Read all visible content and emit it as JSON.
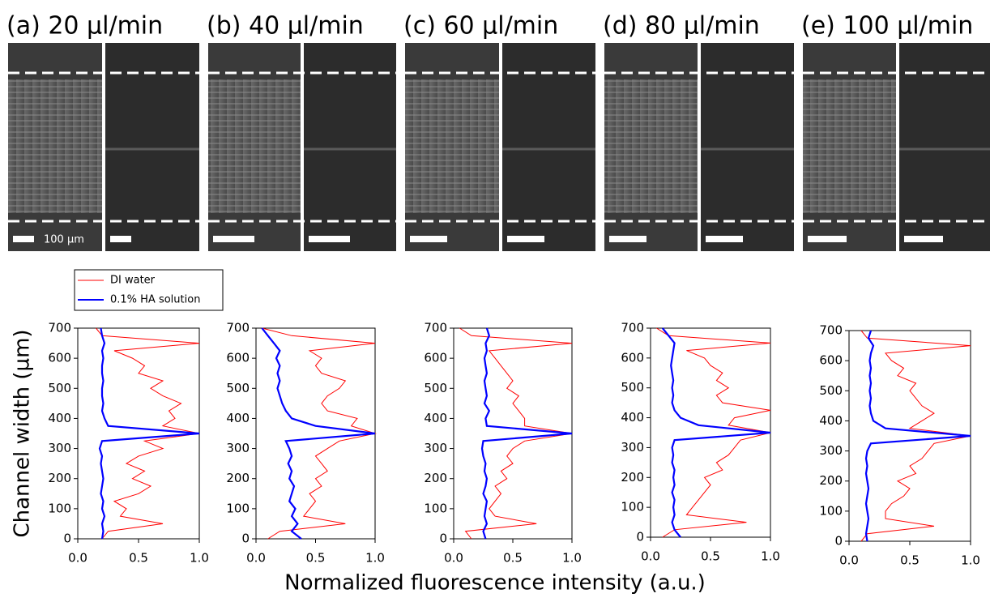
{
  "panels": [
    {
      "label": "(a)  20 µl/min"
    },
    {
      "label": "(b)  40 µl/min"
    },
    {
      "label": "(c)  60 µl/min"
    },
    {
      "label": "(d)  80 µl/min"
    },
    {
      "label": "(e)  100 µl/min"
    }
  ],
  "scale_bar": "100 µm",
  "shared_ylabel": "Channel width (µm)",
  "shared_xlabel": "Normalized fluorescence intensity (a.u.)",
  "chart_data": [
    {
      "type": "line",
      "y": [
        0,
        25,
        50,
        75,
        100,
        125,
        150,
        175,
        200,
        225,
        250,
        275,
        300,
        325,
        350,
        375,
        400,
        425,
        450,
        475,
        500,
        525,
        550,
        575,
        600,
        625,
        650,
        675,
        700
      ],
      "xlim": [
        0,
        1
      ],
      "ylim": [
        0,
        700
      ],
      "xticks": [
        {
          "value": 0,
          "label": "0.0"
        },
        {
          "value": 0.5,
          "label": "0.5"
        },
        {
          "value": 1,
          "label": "1.0"
        }
      ],
      "yticks": [
        0,
        100,
        200,
        300,
        400,
        500,
        600,
        700
      ],
      "series": [
        {
          "name": "DI water",
          "color": "#ff0000",
          "values": [
            0.2,
            0.25,
            0.7,
            0.35,
            0.4,
            0.3,
            0.5,
            0.6,
            0.45,
            0.55,
            0.4,
            0.5,
            0.7,
            0.55,
            1.0,
            0.7,
            0.8,
            0.75,
            0.85,
            0.7,
            0.6,
            0.7,
            0.5,
            0.55,
            0.45,
            0.3,
            1.0,
            0.2,
            0.15
          ]
        },
        {
          "name": "0.1% HA solution",
          "color": "#0000ff",
          "values": [
            0.2,
            0.21,
            0.2,
            0.22,
            0.2,
            0.21,
            0.19,
            0.2,
            0.21,
            0.2,
            0.19,
            0.2,
            0.18,
            0.2,
            1.0,
            0.25,
            0.22,
            0.2,
            0.21,
            0.2,
            0.2,
            0.21,
            0.2,
            0.2,
            0.21,
            0.2,
            0.22,
            0.2,
            0.19
          ]
        }
      ]
    },
    {
      "type": "line",
      "y": [
        0,
        25,
        50,
        75,
        100,
        125,
        150,
        175,
        200,
        225,
        250,
        275,
        300,
        325,
        350,
        375,
        400,
        425,
        450,
        475,
        500,
        525,
        550,
        575,
        600,
        625,
        650,
        675,
        700
      ],
      "xlim": [
        0,
        1
      ],
      "ylim": [
        0,
        700
      ],
      "xticks": [
        {
          "value": 0,
          "label": "0.0"
        },
        {
          "value": 0.5,
          "label": "0.5"
        },
        {
          "value": 1,
          "label": "1.0"
        }
      ],
      "yticks": [
        0,
        100,
        200,
        300,
        400,
        500,
        600,
        700
      ],
      "series": [
        {
          "name": "DI water",
          "color": "#ff0000",
          "values": [
            0.1,
            0.2,
            0.75,
            0.4,
            0.45,
            0.5,
            0.45,
            0.55,
            0.5,
            0.6,
            0.55,
            0.5,
            0.6,
            0.7,
            1.0,
            0.8,
            0.85,
            0.6,
            0.55,
            0.6,
            0.7,
            0.75,
            0.55,
            0.5,
            0.55,
            0.45,
            1.0,
            0.3,
            0.05
          ]
        },
        {
          "name": "0.1% HA solution",
          "color": "#0000ff",
          "values": [
            0.38,
            0.3,
            0.35,
            0.3,
            0.33,
            0.28,
            0.3,
            0.32,
            0.28,
            0.3,
            0.27,
            0.3,
            0.28,
            0.25,
            1.0,
            0.5,
            0.3,
            0.25,
            0.22,
            0.2,
            0.18,
            0.2,
            0.18,
            0.2,
            0.17,
            0.2,
            0.15,
            0.1,
            0.05
          ]
        }
      ]
    },
    {
      "type": "line",
      "y": [
        0,
        25,
        50,
        75,
        100,
        125,
        150,
        175,
        200,
        225,
        250,
        275,
        300,
        325,
        350,
        375,
        400,
        425,
        450,
        475,
        500,
        525,
        550,
        575,
        600,
        625,
        650,
        675,
        700
      ],
      "xlim": [
        0,
        1
      ],
      "ylim": [
        0,
        700
      ],
      "xticks": [
        {
          "value": 0,
          "label": "0.0"
        },
        {
          "value": 0.5,
          "label": "0.5"
        },
        {
          "value": 1,
          "label": "1.0"
        }
      ],
      "yticks": [
        0,
        100,
        200,
        300,
        400,
        500,
        600,
        700
      ],
      "series": [
        {
          "name": "DI water",
          "color": "#ff0000",
          "values": [
            0.15,
            0.1,
            0.7,
            0.35,
            0.3,
            0.35,
            0.4,
            0.35,
            0.45,
            0.4,
            0.5,
            0.45,
            0.5,
            0.6,
            1.0,
            0.6,
            0.6,
            0.55,
            0.5,
            0.55,
            0.45,
            0.5,
            0.45,
            0.4,
            0.35,
            0.3,
            1.0,
            0.15,
            0.05
          ]
        },
        {
          "name": "0.1% HA solution",
          "color": "#0000ff",
          "values": [
            0.27,
            0.25,
            0.28,
            0.26,
            0.27,
            0.28,
            0.25,
            0.27,
            0.28,
            0.26,
            0.27,
            0.25,
            0.24,
            0.25,
            1.0,
            0.28,
            0.27,
            0.3,
            0.26,
            0.28,
            0.27,
            0.26,
            0.28,
            0.27,
            0.26,
            0.28,
            0.27,
            0.3,
            0.28
          ]
        }
      ]
    },
    {
      "type": "line",
      "y": [
        0,
        25,
        50,
        75,
        100,
        125,
        150,
        175,
        200,
        225,
        250,
        275,
        300,
        325,
        350,
        375,
        400,
        425,
        450,
        475,
        500,
        525,
        550,
        575,
        600,
        625,
        650,
        675,
        700
      ],
      "xlim": [
        0,
        1
      ],
      "ylim": [
        0,
        700
      ],
      "xticks": [
        {
          "value": 0,
          "label": "0.0"
        },
        {
          "value": 0.5,
          "label": "0.5"
        },
        {
          "value": 1,
          "label": "1.0"
        }
      ],
      "yticks": [
        0,
        100,
        200,
        300,
        400,
        500,
        600,
        700
      ],
      "series": [
        {
          "name": "DI water",
          "color": "#ff0000",
          "values": [
            0.1,
            0.2,
            0.8,
            0.3,
            0.35,
            0.4,
            0.45,
            0.5,
            0.45,
            0.6,
            0.55,
            0.65,
            0.7,
            0.75,
            1.0,
            0.65,
            0.7,
            1.0,
            0.6,
            0.55,
            0.65,
            0.55,
            0.6,
            0.5,
            0.45,
            0.3,
            1.0,
            0.15,
            0.05
          ]
        },
        {
          "name": "0.1% HA solution",
          "color": "#0000ff",
          "values": [
            0.25,
            0.2,
            0.18,
            0.2,
            0.19,
            0.2,
            0.18,
            0.2,
            0.19,
            0.2,
            0.18,
            0.19,
            0.18,
            0.2,
            1.0,
            0.4,
            0.25,
            0.2,
            0.18,
            0.19,
            0.18,
            0.19,
            0.18,
            0.17,
            0.18,
            0.19,
            0.2,
            0.15,
            0.1
          ]
        }
      ]
    },
    {
      "type": "line",
      "y": [
        0,
        25,
        50,
        75,
        100,
        125,
        150,
        175,
        200,
        225,
        250,
        275,
        300,
        325,
        350,
        375,
        400,
        425,
        450,
        475,
        500,
        525,
        550,
        575,
        600,
        625,
        650,
        675,
        700
      ],
      "xlim": [
        0,
        1
      ],
      "ylim": [
        0,
        700
      ],
      "xticks": [
        {
          "value": 0,
          "label": "0.0"
        },
        {
          "value": 0.5,
          "label": "0.5"
        },
        {
          "value": 1,
          "label": "1.0"
        }
      ],
      "yticks": [
        0,
        100,
        200,
        300,
        400,
        500,
        600,
        700
      ],
      "series": [
        {
          "name": "DI water",
          "color": "#ff0000",
          "values": [
            0.1,
            0.15,
            0.7,
            0.3,
            0.3,
            0.35,
            0.45,
            0.5,
            0.4,
            0.55,
            0.5,
            0.6,
            0.65,
            0.7,
            1.0,
            0.5,
            0.6,
            0.7,
            0.6,
            0.55,
            0.5,
            0.55,
            0.4,
            0.45,
            0.35,
            0.3,
            1.0,
            0.15,
            0.1
          ]
        },
        {
          "name": "0.1% HA solution",
          "color": "#0000ff",
          "values": [
            0.15,
            0.14,
            0.15,
            0.16,
            0.15,
            0.14,
            0.15,
            0.16,
            0.15,
            0.14,
            0.15,
            0.14,
            0.15,
            0.18,
            1.0,
            0.3,
            0.2,
            0.18,
            0.17,
            0.18,
            0.17,
            0.18,
            0.17,
            0.18,
            0.17,
            0.18,
            0.2,
            0.16,
            0.18
          ]
        }
      ]
    }
  ]
}
